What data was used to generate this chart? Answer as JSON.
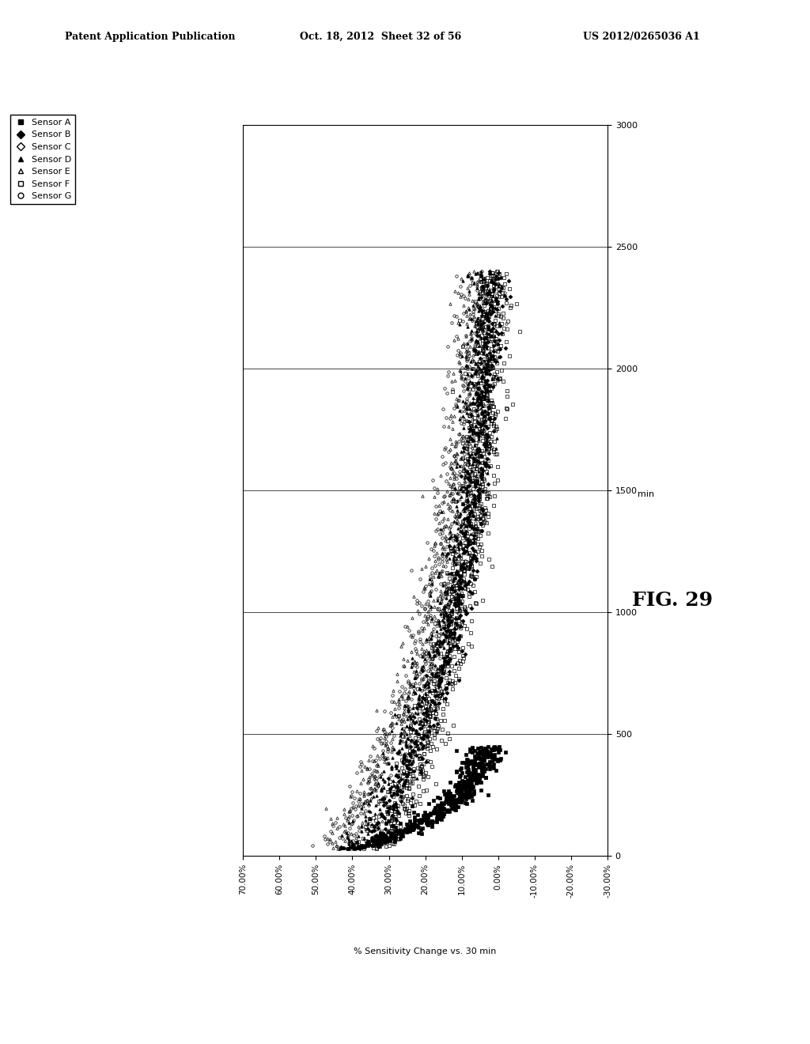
{
  "header_left": "Patent Application Publication",
  "header_center": "Oct. 18, 2012  Sheet 32 of 56",
  "header_right": "US 2012/0265036 A1",
  "fig_label": "FIG. 29",
  "pct_label": "% Sensitivity Change vs. 30 min",
  "time_label": "min",
  "pct_ticks": [
    70,
    60,
    50,
    40,
    30,
    20,
    10,
    0,
    -10,
    -20,
    -30
  ],
  "pct_tick_labels": [
    "70.00%",
    "60.00%",
    "50.00%",
    "40.00%",
    "30.00%",
    "20.00%",
    "10.00%",
    "0.00%",
    "-10.00%",
    "-20.00%",
    "-30.00%"
  ],
  "time_ticks": [
    0,
    500,
    1000,
    1500,
    2000,
    2500,
    3000
  ],
  "pct_lim": [
    -30,
    70
  ],
  "time_lim": [
    0,
    3000
  ],
  "sensors": [
    "Sensor A",
    "Sensor B",
    "Sensor C",
    "Sensor D",
    "Sensor E",
    "Sensor F",
    "Sensor G"
  ],
  "markers": [
    "s",
    "D",
    "^",
    "s",
    "^",
    "s",
    "o"
  ],
  "fillstyles": [
    "full",
    "full",
    "full",
    "none",
    "none",
    "none",
    "none"
  ],
  "legend_markers": [
    "s",
    "D",
    "D",
    "^",
    "^",
    "s",
    "o"
  ],
  "legend_fills": [
    "full",
    "full",
    "none",
    "full",
    "none",
    "none",
    "none"
  ],
  "background_color": "#ffffff"
}
